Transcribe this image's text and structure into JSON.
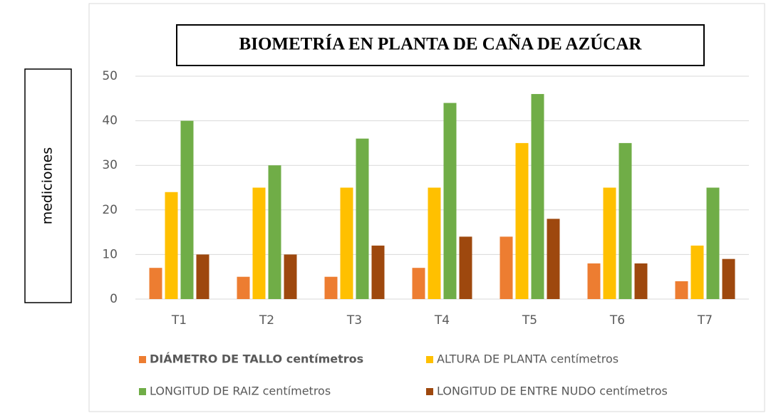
{
  "chart_data": {
    "type": "bar",
    "title": "BIOMETRÍA EN PLANTA DE CAÑA DE AZÚCAR",
    "y_label": "mediciones",
    "categories": [
      "T1",
      "T2",
      "T3",
      "T4",
      "T5",
      "T6",
      "T7"
    ],
    "series": [
      {
        "name": "DIÁMETRO DE TALLO centímetros",
        "color": "#ed7d31",
        "values": [
          7,
          5,
          5,
          7,
          14,
          8,
          4
        ]
      },
      {
        "name": "ALTURA DE PLANTA centímetros",
        "color": "#ffc000",
        "values": [
          24,
          25,
          25,
          25,
          35,
          25,
          12
        ]
      },
      {
        "name": "LONGITUD DE RAIZ centímetros",
        "color": "#70ad47",
        "values": [
          40,
          30,
          36,
          44,
          46,
          35,
          25
        ]
      },
      {
        "name": "LONGITUD DE ENTRE NUDO centímetros",
        "color": "#9e480e",
        "values": [
          10,
          10,
          12,
          14,
          18,
          8,
          9
        ]
      }
    ],
    "ylim": [
      0,
      50
    ],
    "yticks": [
      0,
      10,
      20,
      30,
      40,
      50
    ],
    "grid": true,
    "legend": "bottom"
  }
}
